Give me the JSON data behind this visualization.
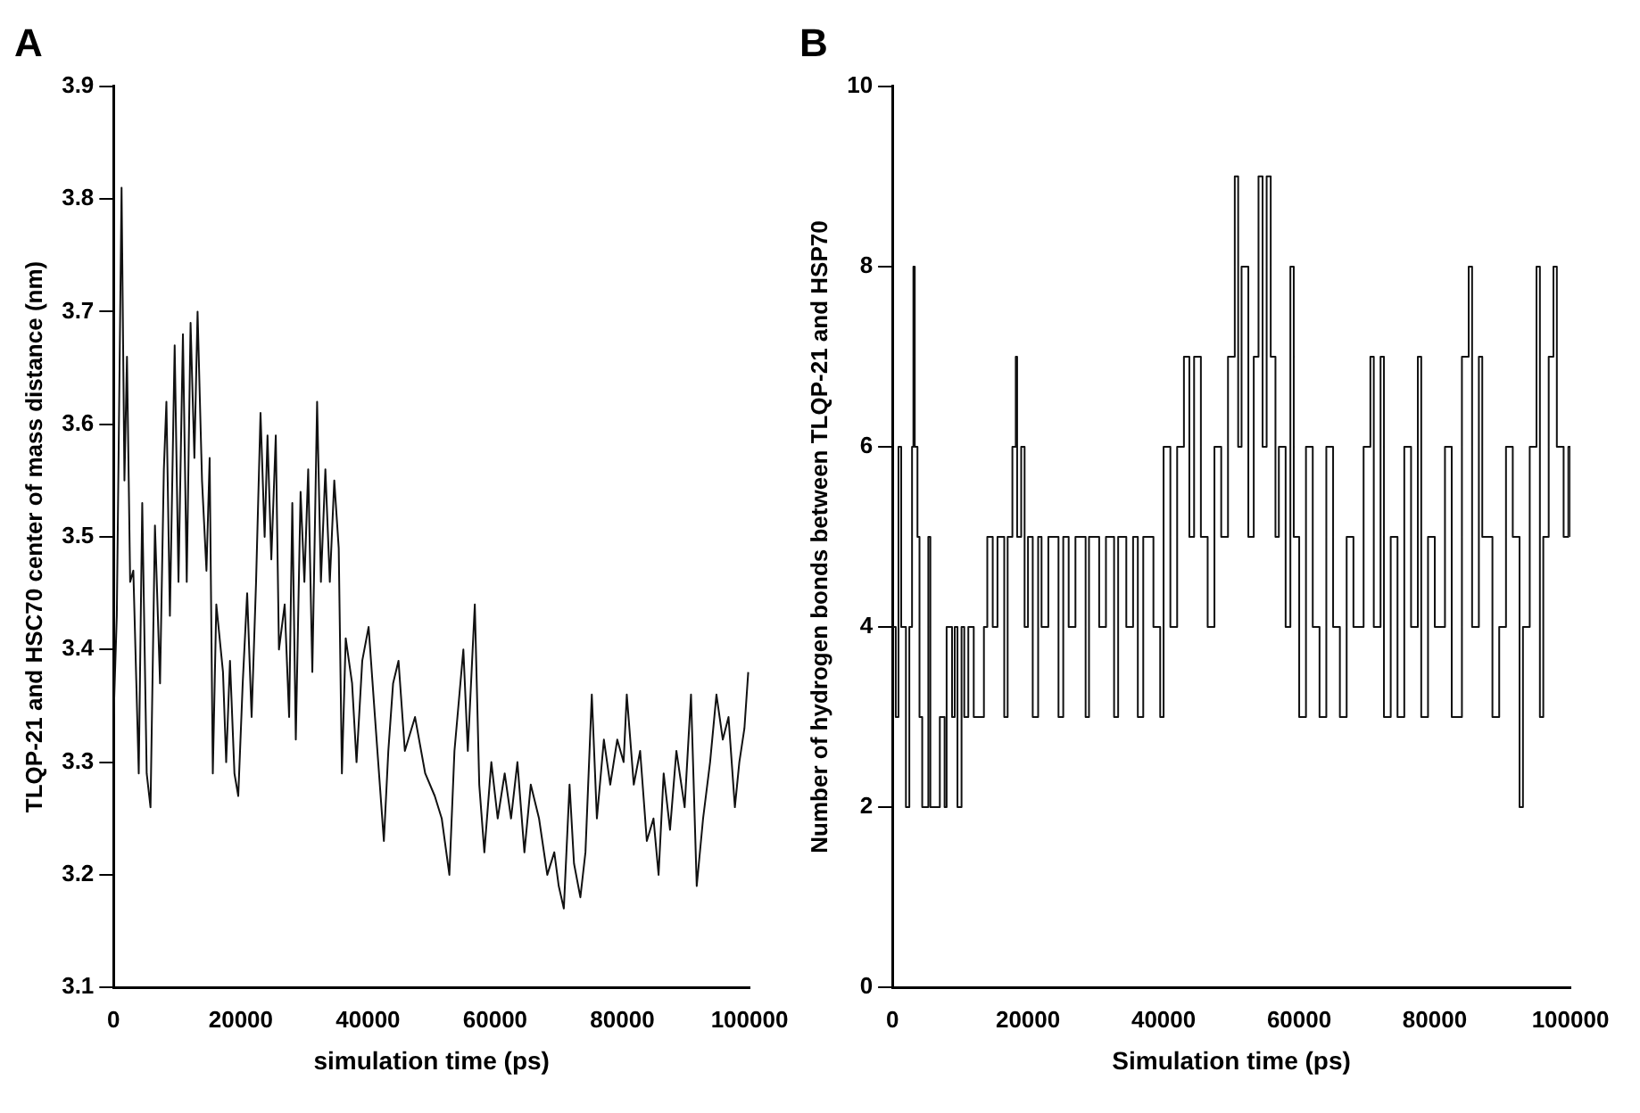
{
  "chart_data": [
    {
      "type": "line",
      "title": "A",
      "xlabel": "simulation time (ps)",
      "ylabel": "TLQP-21 and HSC70 center of mass distance (nm)",
      "xlim": [
        0,
        100000
      ],
      "xticks": [
        0,
        20000,
        40000,
        60000,
        80000,
        100000
      ],
      "ylim": [
        3.1,
        3.9
      ],
      "yticks": [
        3.1,
        3.2,
        3.3,
        3.4,
        3.5,
        3.6,
        3.7,
        3.8,
        3.9
      ],
      "grid": false,
      "legend": false,
      "marker": "none",
      "x": [
        0,
        500,
        1250,
        1700,
        2100,
        2600,
        3100,
        3950,
        4500,
        5200,
        5800,
        6500,
        7300,
        7900,
        8300,
        8850,
        9600,
        10200,
        10900,
        11500,
        12100,
        12700,
        13200,
        13900,
        14600,
        15100,
        15600,
        16150,
        17200,
        17700,
        18300,
        19000,
        19600,
        20300,
        21000,
        21700,
        22400,
        23100,
        23750,
        24200,
        24800,
        25500,
        26000,
        26900,
        27600,
        28100,
        28650,
        29400,
        30000,
        30600,
        31250,
        32000,
        32600,
        33300,
        34000,
        34700,
        35400,
        35900,
        36500,
        37500,
        38200,
        39100,
        40100,
        41100,
        42500,
        43200,
        43950,
        44800,
        45800,
        47400,
        49000,
        50500,
        51600,
        52800,
        53600,
        55000,
        55700,
        56800,
        57500,
        58300,
        59400,
        60400,
        61500,
        62500,
        63500,
        64600,
        65600,
        66900,
        68200,
        69300,
        70000,
        70800,
        71700,
        72400,
        73400,
        74200,
        75200,
        76000,
        77100,
        78100,
        79200,
        80200,
        80700,
        81800,
        82800,
        83850,
        84900,
        85700,
        86500,
        87500,
        88500,
        89800,
        90800,
        91700,
        92700,
        93800,
        94800,
        95800,
        96700,
        97700,
        98400,
        99200,
        99800
      ],
      "series": [
        {
          "color": "#111111",
          "values": [
            3.34,
            3.43,
            3.81,
            3.55,
            3.66,
            3.46,
            3.47,
            3.29,
            3.53,
            3.29,
            3.26,
            3.51,
            3.37,
            3.56,
            3.62,
            3.43,
            3.67,
            3.46,
            3.68,
            3.46,
            3.69,
            3.57,
            3.7,
            3.55,
            3.47,
            3.57,
            3.29,
            3.44,
            3.38,
            3.3,
            3.39,
            3.29,
            3.27,
            3.37,
            3.45,
            3.34,
            3.46,
            3.61,
            3.5,
            3.59,
            3.48,
            3.59,
            3.4,
            3.44,
            3.34,
            3.53,
            3.32,
            3.54,
            3.46,
            3.56,
            3.38,
            3.62,
            3.46,
            3.56,
            3.46,
            3.55,
            3.49,
            3.29,
            3.41,
            3.37,
            3.3,
            3.39,
            3.42,
            3.34,
            3.23,
            3.31,
            3.37,
            3.39,
            3.31,
            3.34,
            3.29,
            3.27,
            3.25,
            3.2,
            3.31,
            3.4,
            3.31,
            3.44,
            3.28,
            3.22,
            3.3,
            3.25,
            3.29,
            3.25,
            3.3,
            3.22,
            3.28,
            3.25,
            3.2,
            3.22,
            3.19,
            3.17,
            3.28,
            3.21,
            3.18,
            3.22,
            3.36,
            3.25,
            3.32,
            3.28,
            3.32,
            3.3,
            3.36,
            3.28,
            3.31,
            3.23,
            3.25,
            3.2,
            3.29,
            3.24,
            3.31,
            3.26,
            3.36,
            3.19,
            3.25,
            3.3,
            3.36,
            3.32,
            3.34,
            3.26,
            3.3,
            3.33,
            3.38
          ]
        }
      ]
    },
    {
      "type": "step",
      "title": "B",
      "xlabel": "Simulation time (ps)",
      "ylabel": "Number of hydrogen bonds between TLQP-21 and HSP70",
      "xlim": [
        0,
        100000
      ],
      "xticks": [
        0,
        20000,
        40000,
        60000,
        80000,
        100000
      ],
      "ylim": [
        0,
        10
      ],
      "yticks": [
        0,
        2,
        4,
        6,
        8,
        10
      ],
      "grid": false,
      "legend": false,
      "marker": "none",
      "x": [
        0,
        500,
        900,
        1300,
        2000,
        2500,
        2900,
        3100,
        3300,
        3700,
        4000,
        4400,
        5300,
        5600,
        7000,
        7700,
        8000,
        8800,
        9200,
        9600,
        10200,
        10600,
        11200,
        12000,
        13500,
        14000,
        14800,
        15500,
        16500,
        17000,
        17700,
        18200,
        18400,
        19000,
        19500,
        20000,
        20700,
        21500,
        22000,
        23000,
        24500,
        25200,
        26000,
        27000,
        28500,
        29000,
        30500,
        31500,
        32700,
        33300,
        34500,
        35500,
        36200,
        37000,
        38500,
        39500,
        40000,
        41000,
        42000,
        43000,
        43800,
        44500,
        45500,
        46500,
        47500,
        48500,
        49500,
        50500,
        51000,
        51500,
        52500,
        53300,
        54000,
        54600,
        55200,
        55800,
        56500,
        57000,
        58000,
        58700,
        59200,
        60000,
        61000,
        62000,
        63000,
        64000,
        65000,
        66000,
        67000,
        68000,
        69500,
        70500,
        71000,
        72000,
        72500,
        73500,
        74500,
        75500,
        76500,
        77500,
        78000,
        79000,
        80000,
        81500,
        82500,
        84000,
        85000,
        85500,
        86500,
        87000,
        88500,
        89500,
        90500,
        91500,
        92500,
        93000,
        94000,
        95000,
        95500,
        96000,
        96800,
        97500,
        98000,
        99000,
        99700,
        100000
      ],
      "series": [
        {
          "color": "#111111",
          "values": [
            4,
            3,
            6,
            4,
            2,
            4,
            6,
            8,
            6,
            5,
            3,
            2,
            5,
            2,
            3,
            2,
            4,
            3,
            4,
            2,
            4,
            3,
            4,
            3,
            4,
            5,
            4,
            5,
            3,
            5,
            6,
            7,
            5,
            6,
            4,
            5,
            3,
            5,
            4,
            5,
            3,
            5,
            4,
            5,
            3,
            5,
            4,
            5,
            3,
            5,
            4,
            5,
            3,
            5,
            4,
            3,
            6,
            4,
            6,
            7,
            5,
            7,
            5,
            4,
            6,
            5,
            7,
            9,
            6,
            8,
            5,
            7,
            9,
            6,
            9,
            7,
            5,
            6,
            4,
            8,
            5,
            3,
            6,
            4,
            3,
            6,
            4,
            3,
            5,
            4,
            6,
            7,
            4,
            7,
            3,
            5,
            3,
            6,
            4,
            7,
            3,
            5,
            4,
            6,
            3,
            7,
            8,
            4,
            7,
            5,
            3,
            4,
            6,
            5,
            2,
            4,
            6,
            8,
            3,
            5,
            7,
            8,
            6,
            5,
            6,
            5
          ]
        }
      ]
    }
  ]
}
